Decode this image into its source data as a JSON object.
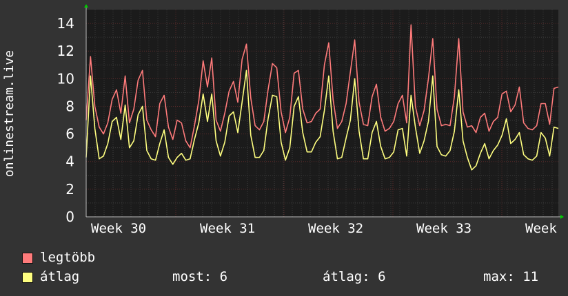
{
  "chart_data": {
    "type": "line",
    "ylabel": "onlinestream.live",
    "ylim": [
      0,
      15
    ],
    "y_ticks": [
      0,
      2,
      4,
      6,
      8,
      10,
      12,
      14
    ],
    "x_ticks": [
      "Week 30",
      "Week 31",
      "Week 32",
      "Week 33",
      "Week"
    ],
    "grid": true,
    "legend_placement": "bottom-left",
    "series": [
      {
        "name": "legtöbb",
        "color": "#ff7b7b",
        "values": [
          7,
          11.6,
          8,
          6.5,
          6,
          6.8,
          8.5,
          9.2,
          7.5,
          10.2,
          6.8,
          7.8,
          9.9,
          10.6,
          7,
          6.3,
          5.8,
          8.2,
          8.8,
          6.5,
          5.6,
          7,
          6.8,
          5.5,
          5,
          6.6,
          8.4,
          11.3,
          9.4,
          11.5,
          7,
          6.2,
          7.5,
          9.1,
          9.8,
          8.3,
          11.4,
          12.5,
          8.6,
          6.6,
          6.3,
          6.9,
          9.2,
          11.1,
          10.8,
          7.6,
          6.1,
          7.2,
          10.4,
          10.6,
          7.8,
          6.8,
          6.9,
          7.5,
          7.8,
          11,
          12.6,
          8.5,
          6.4,
          6.9,
          8.2,
          10.5,
          12.8,
          8.3,
          6.7,
          6.6,
          8.7,
          9.6,
          7.2,
          6.2,
          6.4,
          6.9,
          8.2,
          8.8,
          6.8,
          13.9,
          8,
          6.6,
          7.7,
          10,
          12.9,
          7.8,
          6.6,
          6.7,
          6.6,
          8.7,
          12.9,
          7.6,
          6.5,
          6.6,
          6.1,
          7.2,
          7.5,
          6.2,
          6.9,
          7.2,
          8.9,
          9.1,
          7.6,
          8.1,
          9.4,
          6.8,
          6.4,
          6.3,
          6.6,
          8.2,
          8.2,
          6.7,
          9.3,
          9.4
        ]
      },
      {
        "name": "átlag",
        "color": "#ffff80",
        "values": [
          4.3,
          10.2,
          6.4,
          4.2,
          4.4,
          5.3,
          6.9,
          7.2,
          5.6,
          8.1,
          5,
          5.5,
          7.4,
          8,
          4.8,
          4.2,
          4.1,
          5.3,
          6.3,
          4.3,
          3.8,
          4.3,
          4.6,
          4.1,
          4.2,
          5.6,
          6.8,
          8.9,
          6.9,
          8.9,
          5.5,
          4.4,
          5.4,
          7.3,
          7.6,
          6.1,
          8.3,
          10.6,
          5.9,
          4.3,
          4.3,
          4.8,
          7.1,
          8.8,
          8.7,
          5.4,
          4.1,
          5,
          8,
          8.7,
          6.1,
          4.7,
          4.7,
          5.4,
          5.8,
          7.7,
          10.2,
          6.2,
          4.2,
          4.3,
          5.7,
          7,
          10,
          6.2,
          4.2,
          4.2,
          6.1,
          6.9,
          5.1,
          4.2,
          4.3,
          4.7,
          6.3,
          6.4,
          4.4,
          8.8,
          6.5,
          4.6,
          5.5,
          6.9,
          10.2,
          5.1,
          4.5,
          4.4,
          4.8,
          6.2,
          9.2,
          5.5,
          4.3,
          3.4,
          3.7,
          4.6,
          5.3,
          4.2,
          4.8,
          5.2,
          5.9,
          7.1,
          5.3,
          5.6,
          6.1,
          4.5,
          4.2,
          4.1,
          4.4,
          6.1,
          5.7,
          4.4,
          6.5,
          6.4
        ]
      }
    ]
  },
  "legend": [
    {
      "label": "legtöbb",
      "color": "#ff7b7b"
    },
    {
      "label": "átlag",
      "color": "#ffff80"
    }
  ],
  "stats": {
    "now": "most: 6",
    "avg": "átlag: 6",
    "max": "max: 11"
  },
  "colors": {
    "page_bg": "#333333",
    "plot_bg": "#1b1b1b",
    "grid_major": "#5a2a2a",
    "grid_minor": "#3c3c3c",
    "axis_arrow": "#00cc00"
  }
}
